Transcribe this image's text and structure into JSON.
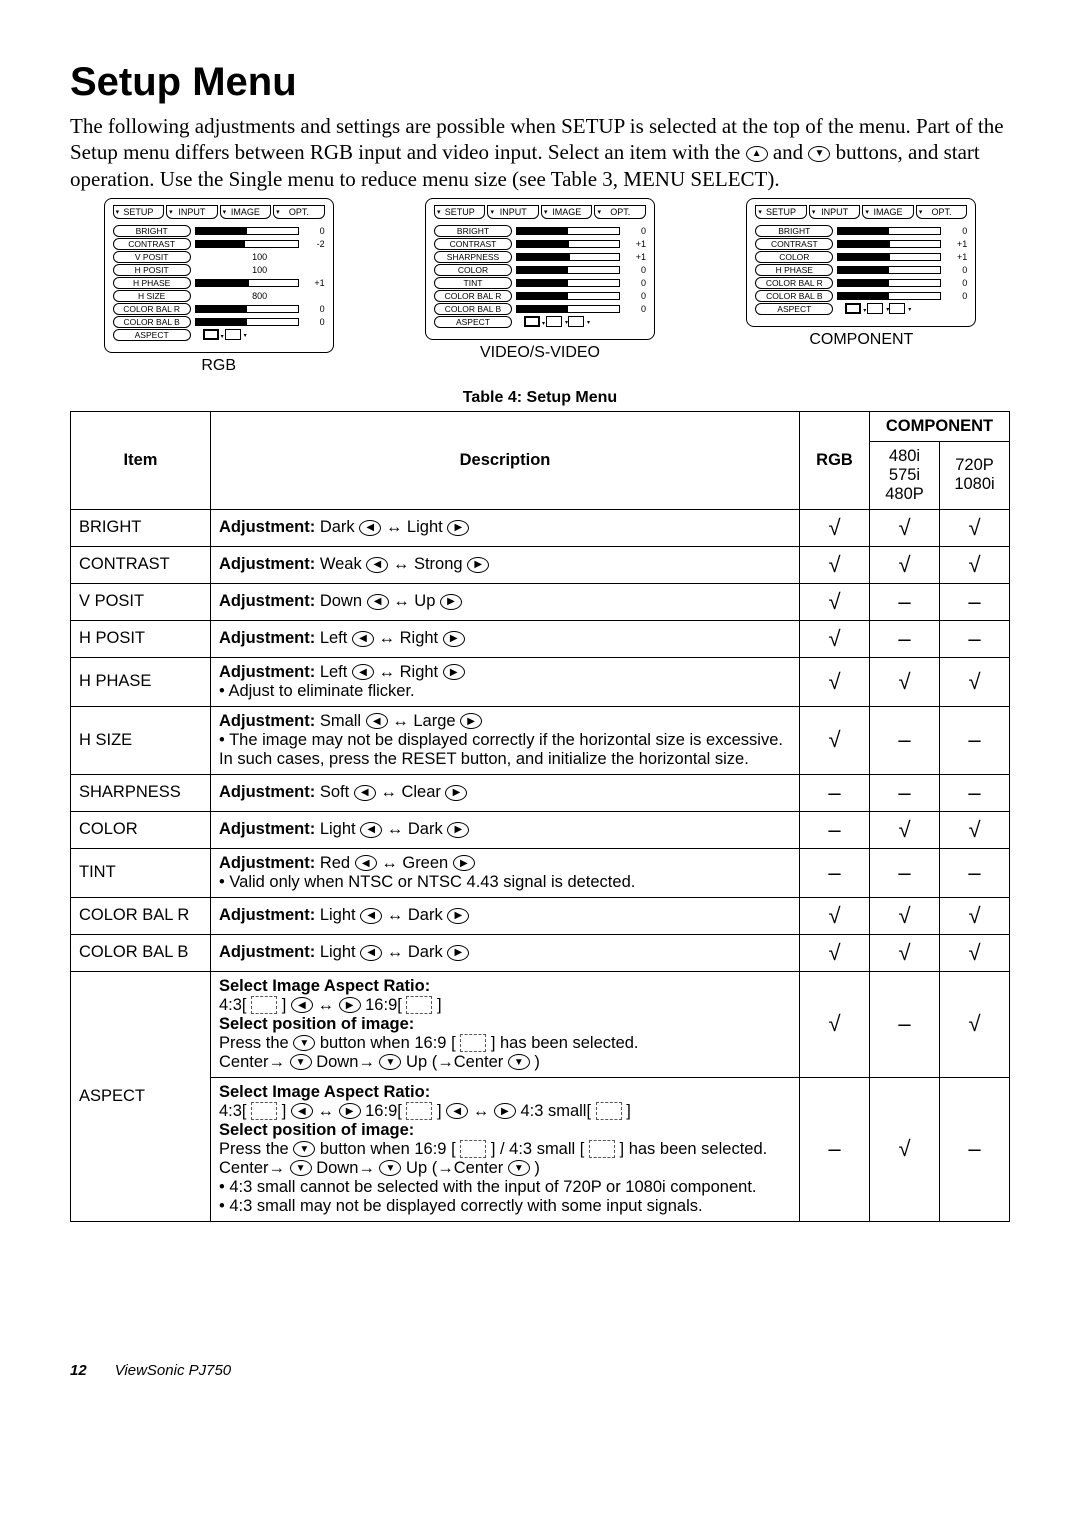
{
  "title": "Setup Menu",
  "intro": "The following adjustments and settings are possible when SETUP is selected at the top of the menu. Part of the Setup menu differs between RGB input and video input. Select an item with the ▲ and ▼ buttons, and start operation. Use the Single menu to reduce menu size (see Table 3, MENU SELECT).",
  "osd": {
    "tabs": [
      "SETUP",
      "INPUT",
      "IMAGE",
      "OPT."
    ],
    "rgb": {
      "caption": "RGB",
      "rows": [
        {
          "label": "BRIGHT",
          "fill": 50,
          "val": "0"
        },
        {
          "label": "CONTRAST",
          "fill": 48,
          "val": "-2"
        },
        {
          "label": "V POSIT",
          "fill": 0,
          "val": "100",
          "text": true
        },
        {
          "label": "H POSIT",
          "fill": 0,
          "val": "100",
          "text": true
        },
        {
          "label": "H PHASE",
          "fill": 52,
          "val": "+1"
        },
        {
          "label": "H SIZE",
          "fill": 0,
          "val": "800",
          "text": true
        },
        {
          "label": "COLOR BAL R",
          "fill": 50,
          "val": "0"
        },
        {
          "label": "COLOR BAL B",
          "fill": 50,
          "val": "0"
        },
        {
          "label": "ASPECT",
          "aspect": true,
          "icons": 2
        }
      ]
    },
    "video": {
      "caption": "VIDEO/S-VIDEO",
      "rows": [
        {
          "label": "BRIGHT",
          "fill": 50,
          "val": "0"
        },
        {
          "label": "CONTRAST",
          "fill": 51,
          "val": "+1"
        },
        {
          "label": "SHARPNESS",
          "fill": 52,
          "val": "+1"
        },
        {
          "label": "COLOR",
          "fill": 50,
          "val": "0"
        },
        {
          "label": "TINT",
          "fill": 50,
          "val": "0"
        },
        {
          "label": "COLOR BAL R",
          "fill": 50,
          "val": "0"
        },
        {
          "label": "COLOR BAL B",
          "fill": 50,
          "val": "0"
        },
        {
          "label": "ASPECT",
          "aspect": true,
          "icons": 3
        }
      ]
    },
    "component": {
      "caption": "COMPONENT",
      "rows": [
        {
          "label": "BRIGHT",
          "fill": 50,
          "val": "0"
        },
        {
          "label": "CONTRAST",
          "fill": 51,
          "val": "+1"
        },
        {
          "label": "COLOR",
          "fill": 51,
          "val": "+1"
        },
        {
          "label": "H PHASE",
          "fill": 50,
          "val": "0"
        },
        {
          "label": "COLOR BAL R",
          "fill": 50,
          "val": "0"
        },
        {
          "label": "COLOR BAL B",
          "fill": 50,
          "val": "0"
        },
        {
          "label": "ASPECT",
          "aspect": true,
          "icons": 3
        }
      ]
    }
  },
  "table_caption": "Table 4: Setup Menu",
  "headers": {
    "item": "Item",
    "desc": "Description",
    "rgb": "RGB",
    "component": "COMPONENT",
    "c1": "480i\n575i\n480P",
    "c2": "720P\n1080i"
  },
  "rows": [
    {
      "item": "BRIGHT",
      "adj_label": "Adjustment:",
      "adj": " Dark ◁ ↔ Light ▷",
      "rgb": "√",
      "c1": "√",
      "c2": "√"
    },
    {
      "item": "CONTRAST",
      "adj_label": "Adjustment:",
      "adj": " Weak ◁ ↔ Strong ▷",
      "rgb": "√",
      "c1": "√",
      "c2": "√"
    },
    {
      "item": "V POSIT",
      "adj_label": "Adjustment:",
      "adj": " Down ◁ ↔ Up ▷",
      "rgb": "√",
      "c1": "–",
      "c2": "–"
    },
    {
      "item": "H POSIT",
      "adj_label": "Adjustment:",
      "adj": " Left ◁ ↔ Right ▷",
      "rgb": "√",
      "c1": "–",
      "c2": "–"
    },
    {
      "item": "H PHASE",
      "adj_label": "Adjustment:",
      "adj": " Left ◁ ↔ Right ▷",
      "extra": "• Adjust to eliminate flicker.",
      "rgb": "√",
      "c1": "√",
      "c2": "√"
    },
    {
      "item": "H SIZE",
      "adj_label": "Adjustment:",
      "adj": " Small ◁ ↔ Large ▷",
      "extra": "• The image may not be displayed correctly if the horizontal size is excessive. In such cases, press the RESET button, and initialize the horizontal size.",
      "rgb": "√",
      "c1": "–",
      "c2": "–"
    },
    {
      "item": "SHARPNESS",
      "adj_label": "Adjustment:",
      "adj": " Soft ◁ ↔ Clear ▷",
      "rgb": "–",
      "c1": "–",
      "c2": "–"
    },
    {
      "item": "COLOR",
      "adj_label": "Adjustment:",
      "adj": " Light ◁ ↔ Dark ▷",
      "rgb": "–",
      "c1": "√",
      "c2": "√"
    },
    {
      "item": "TINT",
      "adj_label": "Adjustment:",
      "adj": " Red ◁ ↔ Green ▷",
      "extra": "• Valid only when NTSC or NTSC 4.43 signal is detected.",
      "rgb": "–",
      "c1": "–",
      "c2": "–"
    },
    {
      "item": "COLOR BAL R",
      "adj_label": "Adjustment:",
      "adj": " Light ◁ ↔ Dark ▷",
      "rgb": "√",
      "c1": "√",
      "c2": "√"
    },
    {
      "item": "COLOR BAL B",
      "adj_label": "Adjustment:",
      "adj": " Light ◁ ↔ Dark ▷",
      "rgb": "√",
      "c1": "√",
      "c2": "√"
    }
  ],
  "aspect": {
    "item": "ASPECT",
    "r1": {
      "t1": "Select Image Aspect Ratio:",
      "l1": "4:3[ ⬚ ] ◁ ↔ ▷ 16:9[ ⬚ ]",
      "t2": "Select position of image:",
      "l2": "Press the ▼ button when 16:9 [ ⬚ ] has been selected.",
      "l3": "Center→ ▼ Down→ ▼ Up (→Center ▼ )",
      "rgb": "√",
      "c1": "–",
      "c2": "√"
    },
    "r2": {
      "t1": "Select Image Aspect Ratio:",
      "l1": "4:3[ ⬚ ] ◁ ↔ ▷ 16:9[ ⬚ ] ◁ ↔ ▷ 4:3 small[ ⬚ ]",
      "t2": "Select position of image:",
      "l2": "Press the ▼ button when 16:9 [ ⬚ ] / 4:3 small [ ⬚ ] has been selected.",
      "l3": "Center→ ▼ Down→ ▼ Up (→Center ▼ )",
      "l4": "• 4:3 small cannot be selected with the input of 720P or 1080i component.",
      "l5": "• 4:3 small may not be displayed correctly with some input signals.",
      "rgb": "–",
      "c1": "√",
      "c2": "–"
    }
  },
  "footer": {
    "page": "12",
    "product": "ViewSonic PJ750"
  }
}
